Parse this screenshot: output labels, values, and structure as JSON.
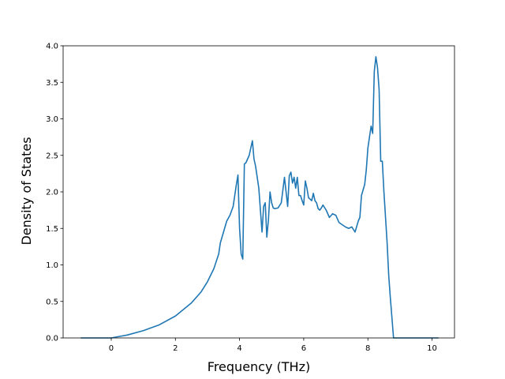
{
  "chart_data": {
    "type": "line",
    "title": "",
    "xlabel": "Frequency (THz)",
    "ylabel": "Density of States",
    "xlim": [
      -1.5,
      10.7
    ],
    "ylim": [
      0.0,
      4.0
    ],
    "xticks": [
      0,
      2,
      4,
      6,
      8,
      10
    ],
    "yticks": [
      0.0,
      0.5,
      1.0,
      1.5,
      2.0,
      2.5,
      3.0,
      3.5,
      4.0
    ],
    "xtick_labels": [
      "0",
      "2",
      "4",
      "6",
      "8",
      "10"
    ],
    "ytick_labels": [
      "0.0",
      "0.5",
      "1.0",
      "1.5",
      "2.0",
      "2.5",
      "3.0",
      "3.5",
      "4.0"
    ],
    "grid": false,
    "legend": "none",
    "line_color": "#1f77b4",
    "series": [
      {
        "x": [
          -0.95,
          0.0,
          0.25,
          0.5,
          1.0,
          1.5,
          2.0,
          2.5,
          2.8,
          3.0,
          3.2,
          3.35,
          3.4,
          3.5,
          3.6,
          3.7,
          3.8,
          3.9,
          3.95,
          4.0,
          4.05,
          4.1,
          4.15,
          4.2,
          4.3,
          4.4,
          4.45,
          4.5,
          4.6,
          4.7,
          4.75,
          4.8,
          4.85,
          4.9,
          4.95,
          5.0,
          5.05,
          5.1,
          5.2,
          5.3,
          5.4,
          5.5,
          5.55,
          5.6,
          5.65,
          5.7,
          5.75,
          5.8,
          5.85,
          5.9,
          5.95,
          6.0,
          6.05,
          6.1,
          6.15,
          6.2,
          6.25,
          6.3,
          6.35,
          6.4,
          6.45,
          6.5,
          6.55,
          6.6,
          6.7,
          6.8,
          6.9,
          7.0,
          7.1,
          7.2,
          7.3,
          7.4,
          7.5,
          7.6,
          7.7,
          7.75,
          7.8,
          7.9,
          7.95,
          8.0,
          8.1,
          8.15,
          8.2,
          8.25,
          8.3,
          8.35,
          8.4,
          8.45,
          8.5,
          8.55,
          8.6,
          8.65,
          8.7,
          8.8,
          8.9,
          9.0,
          9.1,
          9.2,
          9.3,
          9.5,
          9.8,
          10.0,
          10.2
        ],
        "y": [
          0.0,
          0.0,
          0.02,
          0.04,
          0.1,
          0.18,
          0.3,
          0.48,
          0.63,
          0.77,
          0.95,
          1.15,
          1.3,
          1.45,
          1.6,
          1.68,
          1.8,
          2.1,
          2.23,
          1.5,
          1.15,
          1.08,
          2.38,
          2.4,
          2.5,
          2.7,
          2.45,
          2.35,
          2.05,
          1.45,
          1.8,
          1.85,
          1.38,
          1.62,
          2.0,
          1.85,
          1.78,
          1.77,
          1.78,
          1.85,
          2.2,
          1.8,
          2.22,
          2.27,
          2.12,
          2.2,
          2.05,
          2.2,
          1.95,
          1.95,
          1.88,
          1.82,
          2.15,
          2.05,
          1.92,
          1.9,
          1.88,
          1.98,
          1.88,
          1.85,
          1.77,
          1.75,
          1.78,
          1.82,
          1.75,
          1.65,
          1.7,
          1.68,
          1.58,
          1.55,
          1.52,
          1.5,
          1.52,
          1.45,
          1.6,
          1.65,
          1.95,
          2.1,
          2.3,
          2.6,
          2.9,
          2.8,
          3.65,
          3.85,
          3.7,
          3.4,
          2.42,
          2.42,
          2.0,
          1.65,
          1.3,
          0.85,
          0.55,
          0.0,
          0.0,
          0.0,
          0.0,
          0.0,
          0.0,
          0.0,
          0.0,
          0.0,
          0.0
        ]
      }
    ]
  }
}
